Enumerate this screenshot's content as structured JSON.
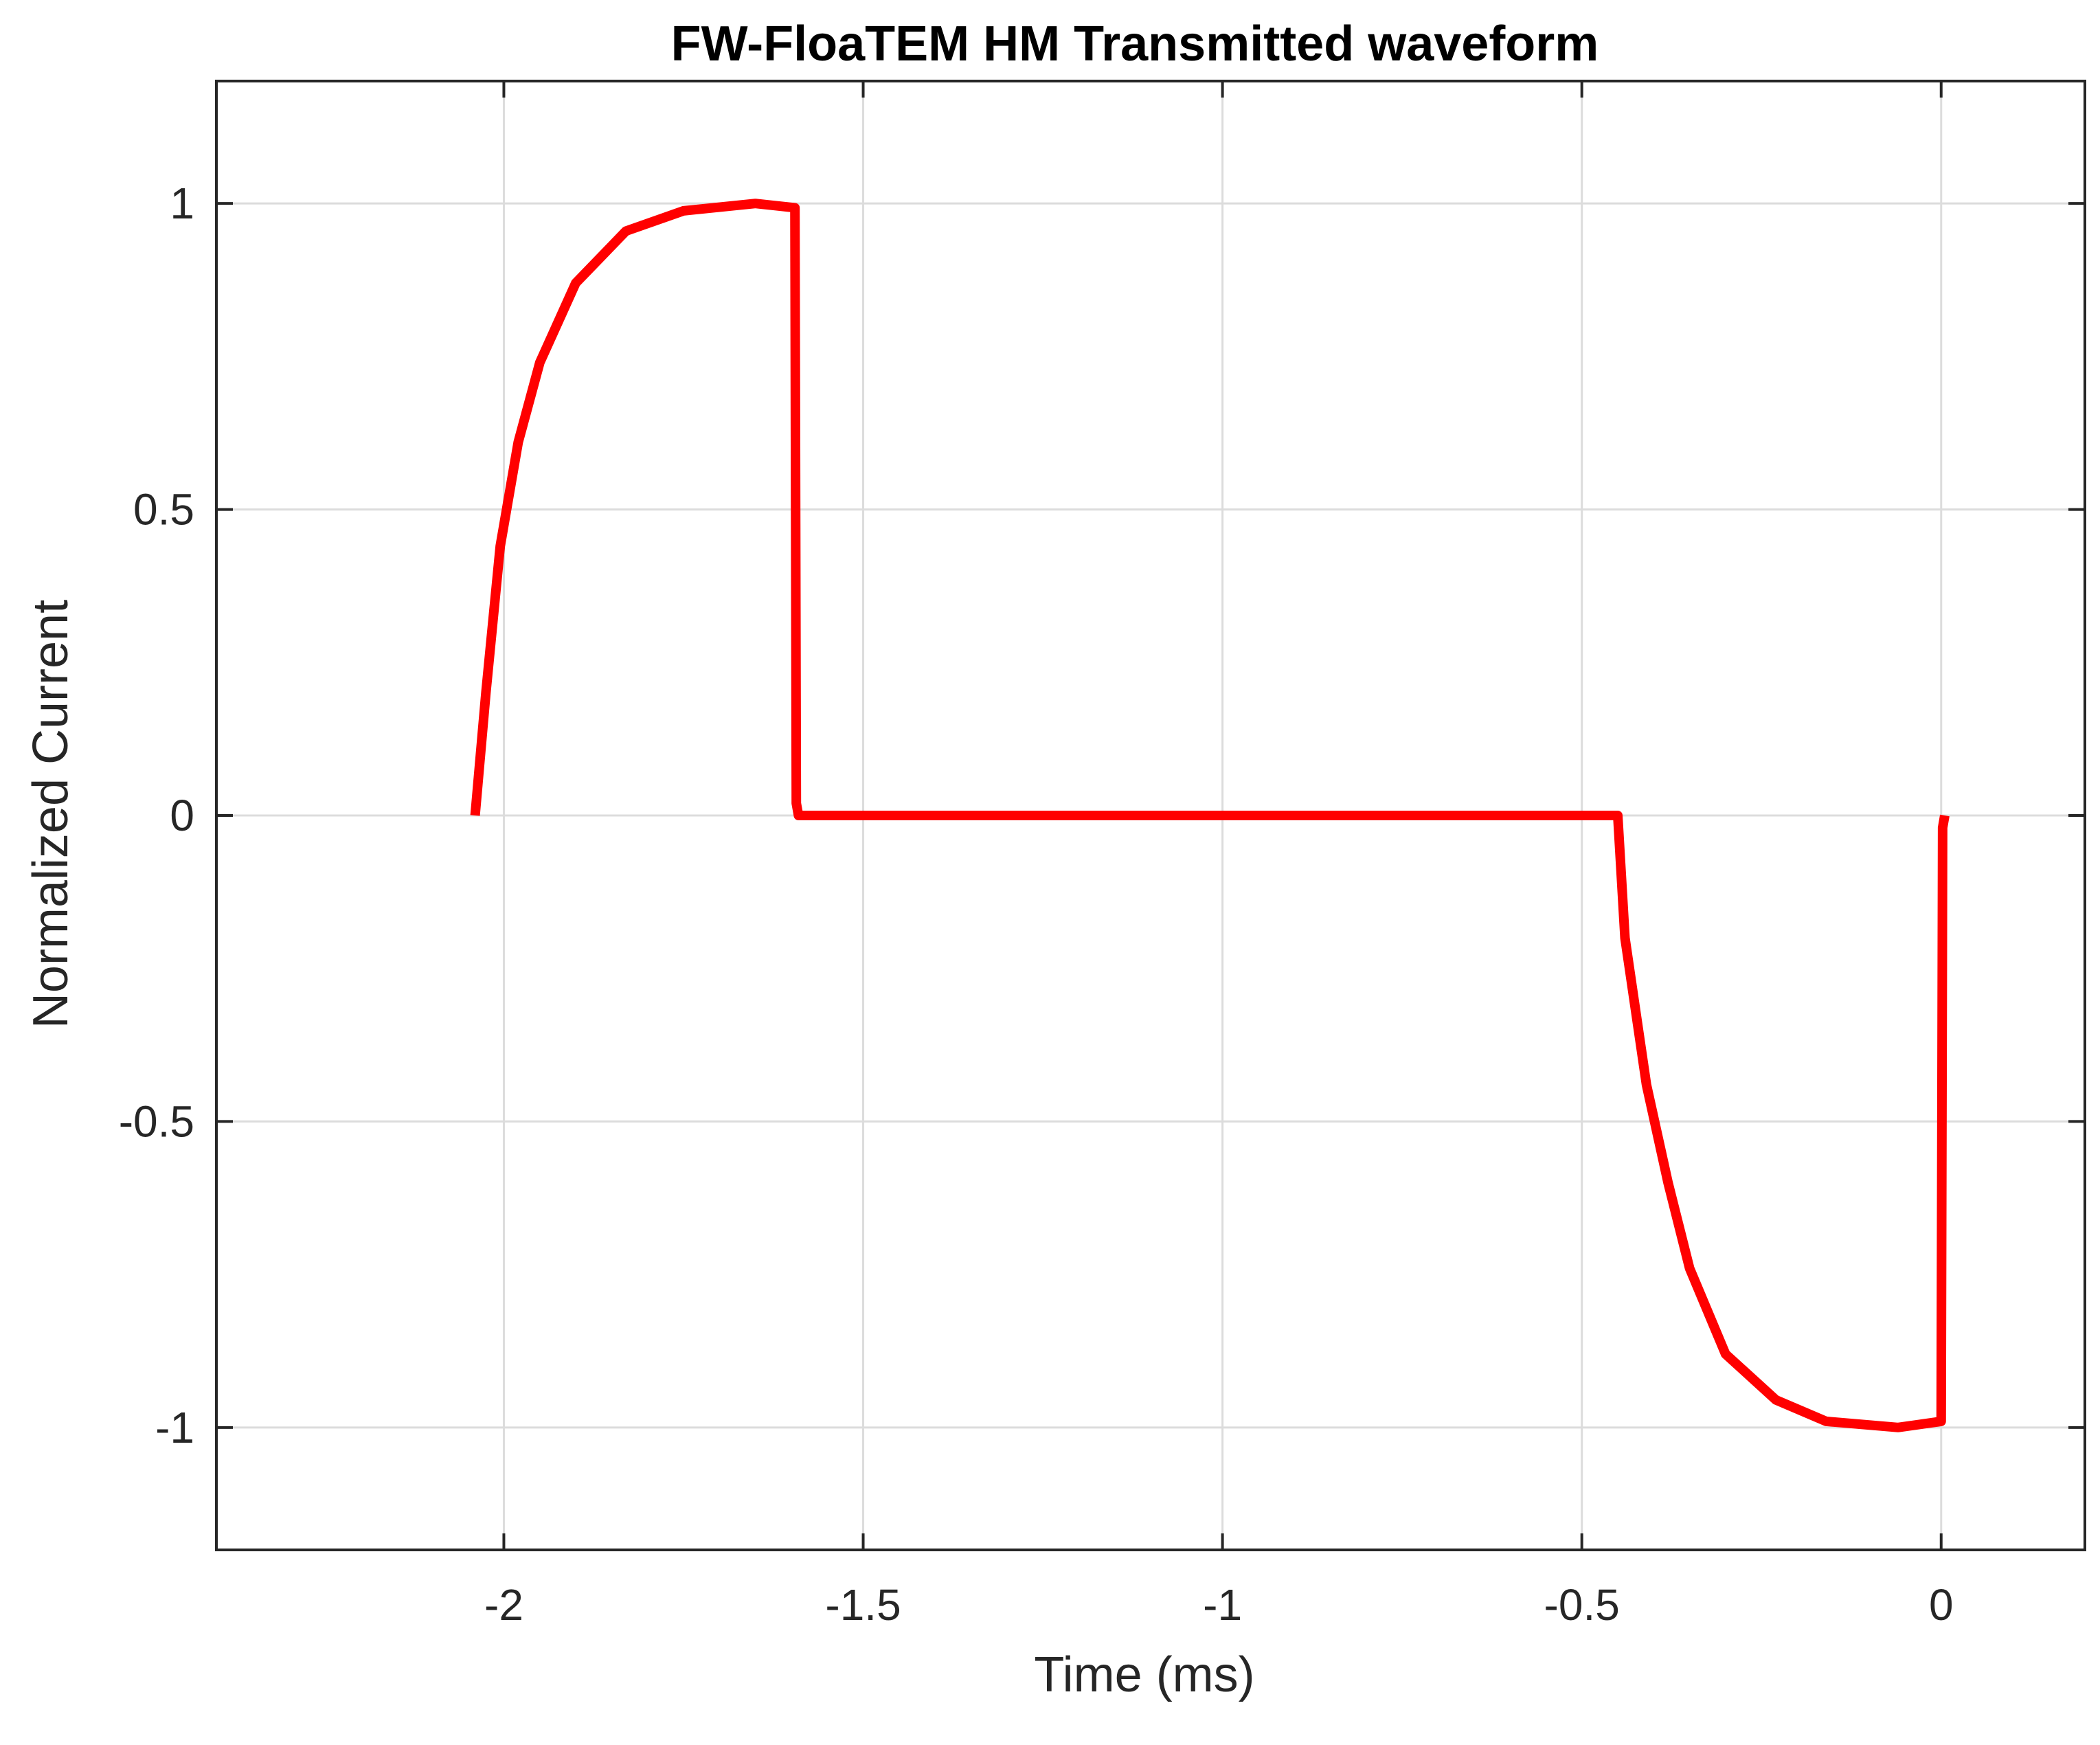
{
  "chart_data": {
    "type": "line",
    "title": "FW-FloaTEM HM Transmitted waveform",
    "xlabel": "Time (ms)",
    "ylabel": "Normalized Current",
    "xlim": [
      -2.4,
      0.2
    ],
    "ylim": [
      -1.2,
      1.2
    ],
    "xticks": [
      -2,
      -1.5,
      -1,
      -0.5,
      0
    ],
    "xtick_labels": [
      "-2",
      "-1.5",
      "-1",
      "-0.5",
      "0"
    ],
    "yticks": [
      -1,
      -0.5,
      0,
      0.5,
      1
    ],
    "ytick_labels": [
      "-1",
      "-0.5",
      "0",
      "0.5",
      "1"
    ],
    "grid": true,
    "series": [
      {
        "color": "#ff0000",
        "x": [
          -2.04,
          -2.025,
          -2.005,
          -1.98,
          -1.95,
          -1.9,
          -1.83,
          -1.75,
          -1.65,
          -1.595,
          -1.593,
          -1.59,
          -0.45,
          -0.44,
          -0.41,
          -0.38,
          -0.35,
          -0.3,
          -0.23,
          -0.16,
          -0.06,
          0.0,
          0.002,
          0.005
        ],
        "y": [
          0.0,
          0.2,
          0.44,
          0.61,
          0.74,
          0.87,
          0.955,
          0.988,
          1.0,
          0.993,
          0.02,
          0.0,
          0.0,
          -0.2,
          -0.44,
          -0.6,
          -0.74,
          -0.88,
          -0.955,
          -0.99,
          -1.0,
          -0.99,
          -0.02,
          0.0
        ]
      }
    ]
  }
}
